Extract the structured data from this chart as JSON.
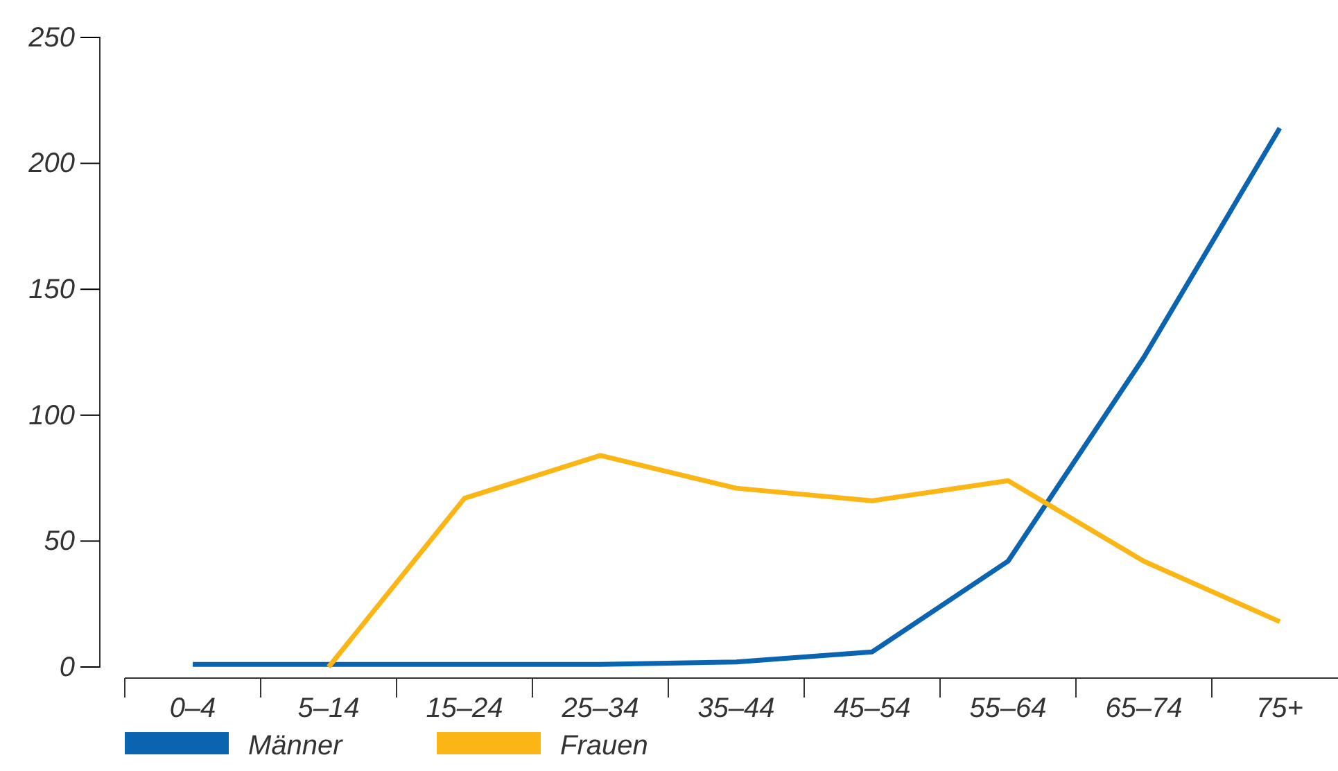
{
  "chart_data": {
    "type": "line",
    "categories": [
      "0–4",
      "5–14",
      "15–24",
      "25–34",
      "35–44",
      "45–54",
      "55–64",
      "65–74",
      "75+"
    ],
    "series": [
      {
        "name": "Männer",
        "color": "#0a64b0",
        "values": [
          1,
          1,
          1,
          1,
          2,
          6,
          42,
          123,
          214
        ]
      },
      {
        "name": "Frauen",
        "color": "#fbb615",
        "values": [
          null,
          0,
          67,
          84,
          71,
          66,
          74,
          42,
          18
        ]
      }
    ],
    "ylim": [
      0,
      250
    ],
    "yticks": [
      0,
      50,
      100,
      150,
      200,
      250
    ],
    "grid": false,
    "legend": "bottom left",
    "marker": "none",
    "line_style": "solid"
  }
}
